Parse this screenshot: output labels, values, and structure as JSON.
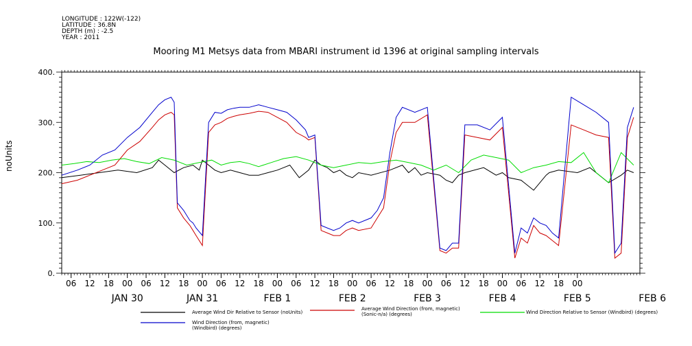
{
  "header": {
    "longitude": "LONGITUDE : 122W(-122)",
    "latitude": "LATITUDE : 36.8N",
    "depth": "DEPTH (m) : -2.5",
    "year": "YEAR : 2011"
  },
  "chart_data": {
    "type": "line",
    "title": "Mooring M1 Metsys data from MBARI instrument id 1396 at original sampling intervals",
    "ylabel": "noUnits",
    "ylim": [
      0,
      400
    ],
    "yticks": [
      0,
      100,
      200,
      300,
      400
    ],
    "ytick_labels": [
      "0.",
      "100.",
      "200.",
      "300.",
      "400."
    ],
    "xlim_hours": [
      -9,
      176
    ],
    "hour_tick_labels": [
      "06",
      "12",
      "18",
      "00",
      "06",
      "12",
      "18",
      "00",
      "06",
      "12",
      "18",
      "00",
      "06",
      "12",
      "18",
      "00",
      "06",
      "12",
      "18",
      "00",
      "06",
      "12",
      "18",
      "00",
      "06",
      "12",
      "18",
      "00"
    ],
    "day_labels": [
      "JAN 30",
      "JAN 31",
      "FEB  1",
      "FEB  2",
      "FEB  3",
      "FEB  4",
      "FEB  5",
      "FEB  6"
    ],
    "grid": false,
    "legend": "bottom",
    "series": [
      {
        "name": "Average Wind Dir Relative to Sensor (noUnits)",
        "color": "#000000",
        "x": [
          -9,
          -3,
          3,
          9,
          15,
          20,
          22,
          24,
          27,
          30,
          33,
          35,
          36,
          40,
          42,
          45,
          48,
          51,
          54,
          57,
          60,
          62,
          64,
          67,
          70,
          72,
          74,
          76,
          78,
          80,
          82,
          84,
          86,
          90,
          96,
          100,
          102,
          104,
          106,
          108,
          112,
          114,
          116,
          118,
          120,
          126,
          130,
          132,
          134,
          138,
          142,
          146,
          147,
          150,
          156,
          160,
          166,
          170,
          172,
          174
        ],
        "y": [
          190,
          195,
          200,
          205,
          200,
          210,
          225,
          215,
          200,
          210,
          215,
          205,
          225,
          205,
          200,
          205,
          200,
          195,
          195,
          200,
          205,
          210,
          215,
          190,
          205,
          225,
          215,
          210,
          200,
          205,
          195,
          190,
          200,
          195,
          205,
          215,
          200,
          210,
          195,
          200,
          195,
          185,
          180,
          195,
          200,
          210,
          195,
          200,
          190,
          185,
          165,
          195,
          200,
          205,
          200,
          210,
          180,
          195,
          205,
          200
        ]
      },
      {
        "name": "Average Wind Direction (from, magnetic) (Sonic-n/a) (degrees)",
        "color": "#cc0000",
        "x": [
          -9,
          -4,
          0,
          4,
          8,
          12,
          16,
          20,
          22,
          24,
          26,
          27,
          28,
          30,
          32,
          33,
          34,
          36,
          38,
          40,
          42,
          44,
          46,
          48,
          51,
          54,
          57,
          60,
          63,
          66,
          69,
          70,
          72,
          74,
          76,
          78,
          80,
          82,
          84,
          86,
          90,
          92,
          94,
          96,
          98,
          100,
          104,
          108,
          112,
          114,
          116,
          118,
          120,
          124,
          128,
          132,
          136,
          138,
          140,
          142,
          144,
          146,
          148,
          150,
          154,
          158,
          162,
          166,
          168,
          170,
          172,
          174
        ],
        "y": [
          178,
          185,
          195,
          205,
          215,
          245,
          262,
          290,
          305,
          315,
          320,
          315,
          130,
          110,
          95,
          85,
          75,
          55,
          280,
          295,
          300,
          308,
          312,
          315,
          318,
          322,
          320,
          310,
          300,
          280,
          270,
          265,
          270,
          85,
          80,
          75,
          75,
          85,
          90,
          85,
          90,
          110,
          130,
          220,
          280,
          300,
          300,
          315,
          45,
          40,
          50,
          50,
          275,
          270,
          265,
          290,
          30,
          70,
          60,
          95,
          80,
          75,
          65,
          55,
          295,
          285,
          275,
          270,
          30,
          40,
          270,
          310
        ]
      },
      {
        "name": "Wind Direction Relative to Sensor (Windbird) (degrees)",
        "color": "#00dd00",
        "x": [
          -9,
          -5,
          -1,
          3,
          7,
          11,
          15,
          19,
          23,
          27,
          31,
          35,
          39,
          42,
          45,
          48,
          51,
          54,
          58,
          62,
          66,
          70,
          74,
          78,
          82,
          86,
          90,
          94,
          98,
          102,
          106,
          110,
          114,
          118,
          122,
          126,
          130,
          134,
          138,
          142,
          146,
          150,
          154,
          158,
          162,
          166,
          170,
          174
        ],
        "y": [
          215,
          218,
          222,
          220,
          225,
          228,
          222,
          218,
          230,
          225,
          215,
          220,
          225,
          215,
          220,
          222,
          218,
          212,
          220,
          228,
          232,
          225,
          215,
          210,
          215,
          220,
          218,
          222,
          225,
          220,
          215,
          205,
          215,
          200,
          225,
          235,
          230,
          225,
          200,
          210,
          215,
          222,
          220,
          240,
          200,
          180,
          240,
          215
        ]
      },
      {
        "name": "Wind Direction (from, magnetic) (Windbird) (degrees)",
        "color": "#0000cc",
        "x": [
          -9,
          -4,
          0,
          4,
          8,
          12,
          16,
          20,
          22,
          24,
          26,
          27,
          28,
          30,
          32,
          33,
          34,
          36,
          38,
          40,
          42,
          44,
          46,
          48,
          51,
          54,
          57,
          60,
          63,
          66,
          69,
          70,
          72,
          74,
          76,
          78,
          80,
          82,
          84,
          86,
          90,
          92,
          94,
          96,
          98,
          100,
          104,
          108,
          112,
          114,
          116,
          118,
          120,
          124,
          128,
          132,
          136,
          138,
          140,
          142,
          144,
          146,
          148,
          150,
          154,
          158,
          162,
          166,
          168,
          170,
          172,
          174
        ],
        "y": [
          195,
          205,
          215,
          235,
          245,
          270,
          290,
          320,
          335,
          345,
          350,
          340,
          140,
          125,
          105,
          100,
          90,
          75,
          300,
          320,
          318,
          325,
          328,
          330,
          330,
          335,
          330,
          325,
          320,
          305,
          285,
          270,
          275,
          95,
          90,
          85,
          90,
          100,
          105,
          100,
          110,
          125,
          150,
          240,
          310,
          330,
          320,
          330,
          50,
          45,
          60,
          60,
          295,
          295,
          285,
          310,
          40,
          90,
          80,
          110,
          100,
          95,
          80,
          70,
          350,
          335,
          320,
          300,
          40,
          60,
          290,
          330
        ]
      }
    ]
  }
}
